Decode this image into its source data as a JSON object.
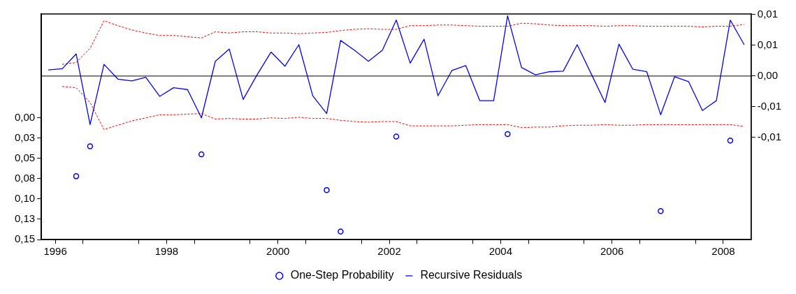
{
  "chart_data": {
    "type": "line",
    "x": [
      1996.375,
      1996.625,
      1996.875,
      1997.125,
      1997.375,
      1997.625,
      1997.875,
      1998.125,
      1998.375,
      1998.625,
      1998.875,
      1999.125,
      1999.375,
      1999.625,
      1999.875,
      2000.125,
      2000.375,
      2000.625,
      2000.875,
      2001.125,
      2001.375,
      2001.625,
      2001.875,
      2002.125,
      2002.375,
      2002.625,
      2002.875,
      2003.125,
      2003.375,
      2003.625,
      2003.875,
      2004.125,
      2004.375,
      2004.625,
      2004.875,
      2005.125,
      2005.375,
      2005.625,
      2005.875,
      2006.125,
      2006.375,
      2006.625,
      2006.875,
      2007.125,
      2007.375,
      2007.625,
      2007.875,
      2008.125,
      2008.375,
      2008.625,
      2008.875
    ],
    "series": [
      {
        "name": "One-Step Probability",
        "type": "scatter",
        "color": "#0000ff",
        "marker": "circle",
        "x": [
          1996.875,
          1997.125,
          1999.125,
          2001.375,
          2001.625,
          2002.625,
          2004.625,
          2007.375,
          2008.625
        ],
        "values": [
          0.072,
          0.035,
          0.045,
          0.089,
          0.14,
          0.023,
          0.02,
          0.115,
          0.028
        ]
      },
      {
        "name": "Recursive Residuals",
        "color": "#0000ff",
        "axis": "y2",
        "marker": "none",
        "line_style": "solid",
        "values": [
          0.001,
          0.0012,
          0.0036,
          -0.0079,
          0.0019,
          -0.0005,
          -0.0008,
          -0.0002,
          -0.0033,
          -0.0019,
          -0.0022,
          -0.0068,
          0.0024,
          0.0044,
          -0.0038,
          0.0002,
          0.0039,
          0.0016,
          0.0051,
          -0.0032,
          -0.0061,
          0.0058,
          0.0042,
          0.0024,
          0.0042,
          0.0091,
          0.0021,
          0.006,
          -0.0032,
          0.0009,
          0.0017,
          -0.004,
          -0.004,
          0.0098,
          0.0014,
          0.0002,
          0.0007,
          0.0008,
          0.0051,
          0.0004,
          -0.0043,
          0.0052,
          0.0011,
          0.0007,
          -0.0063,
          -0.0001,
          -0.0009,
          -0.0056,
          -0.004,
          0.0091,
          0.0051
        ]
      },
      {
        "color": "#ff0000",
        "axis": "y2",
        "marker": "none",
        "line_style": "dashed",
        "values": [
          null,
          0.0019,
          0.0022,
          0.0045,
          0.009,
          0.0082,
          0.0075,
          0.007,
          0.0066,
          0.0066,
          0.0064,
          0.0062,
          0.0072,
          0.007,
          0.0072,
          0.0072,
          0.007,
          0.007,
          0.0069,
          0.007,
          0.0071,
          0.0074,
          0.0076,
          0.0077,
          0.0076,
          0.0076,
          0.0082,
          0.0082,
          0.0083,
          0.0083,
          0.0082,
          0.0081,
          0.0081,
          0.0081,
          0.0086,
          0.0085,
          0.0083,
          0.0082,
          0.0082,
          0.0082,
          0.0081,
          0.0082,
          0.0082,
          0.0081,
          0.0081,
          0.0081,
          0.0081,
          0.008,
          0.0081,
          0.0081,
          0.0084
        ]
      },
      {
        "color": "#ff0000",
        "axis": "y2",
        "marker": "none",
        "line_style": "dashed",
        "values": [
          null,
          -0.0017,
          -0.0019,
          -0.0043,
          -0.0087,
          -0.008,
          -0.0073,
          -0.0068,
          -0.0063,
          -0.0063,
          -0.0062,
          -0.0061,
          -0.007,
          -0.0069,
          -0.007,
          -0.007,
          -0.0068,
          -0.0069,
          -0.0067,
          -0.0069,
          -0.0069,
          -0.0072,
          -0.0074,
          -0.0075,
          -0.0074,
          -0.0074,
          -0.0081,
          -0.0081,
          -0.0081,
          -0.0081,
          -0.008,
          -0.0079,
          -0.0079,
          -0.0079,
          -0.0084,
          -0.0083,
          -0.0083,
          -0.0081,
          -0.008,
          -0.008,
          -0.0079,
          -0.008,
          -0.008,
          -0.0079,
          -0.0079,
          -0.0079,
          -0.0079,
          -0.0079,
          -0.0079,
          -0.0079,
          -0.0082
        ]
      }
    ],
    "xlim": [
      1996.25,
      2009
    ],
    "xticks": [
      {
        "value": 1996.5,
        "label": "1996"
      },
      {
        "value": 1997,
        "label": null
      },
      {
        "value": 1998,
        "label": null
      },
      {
        "value": 1998.5,
        "label": "1998"
      },
      {
        "value": 1999,
        "label": null
      },
      {
        "value": 2000,
        "label": null
      },
      {
        "value": 2000.5,
        "label": "2000"
      },
      {
        "value": 2001,
        "label": null
      },
      {
        "value": 2002,
        "label": null
      },
      {
        "value": 2002.5,
        "label": "2002"
      },
      {
        "value": 2003,
        "label": null
      },
      {
        "value": 2004,
        "label": null
      },
      {
        "value": 2004.5,
        "label": "2004"
      },
      {
        "value": 2005,
        "label": null
      },
      {
        "value": 2006,
        "label": null
      },
      {
        "value": 2006.5,
        "label": "2006"
      },
      {
        "value": 2007,
        "label": null
      },
      {
        "value": 2008,
        "label": null
      },
      {
        "value": 2008.5,
        "label": "2008"
      }
    ],
    "ylim": [
      0.15,
      -0.128
    ],
    "yticks": [
      {
        "value": 0,
        "label": "0,00"
      },
      {
        "value": 0.025,
        "label": "0,03"
      },
      {
        "value": 0.05,
        "label": "0,05"
      },
      {
        "value": 0.075,
        "label": "0,08"
      },
      {
        "value": 0.1,
        "label": "0,10"
      },
      {
        "value": 0.125,
        "label": "0,13"
      },
      {
        "value": 0.15,
        "label": "0,15"
      }
    ],
    "y2lim": [
      -0.0266,
      0.0101
    ],
    "y2ticks": [
      {
        "value": 0.01,
        "label": "0,01"
      },
      {
        "value": 0.005,
        "label": "0,01"
      },
      {
        "value": 0,
        "label": "0,00"
      },
      {
        "value": -0.005,
        "label": "-0,01"
      },
      {
        "value": -0.01,
        "label": "-0,01"
      }
    ],
    "ref_lines": [
      {
        "axis": "y2",
        "value": 0,
        "color": "#000000"
      }
    ],
    "grid": false,
    "legend": "bottom"
  }
}
